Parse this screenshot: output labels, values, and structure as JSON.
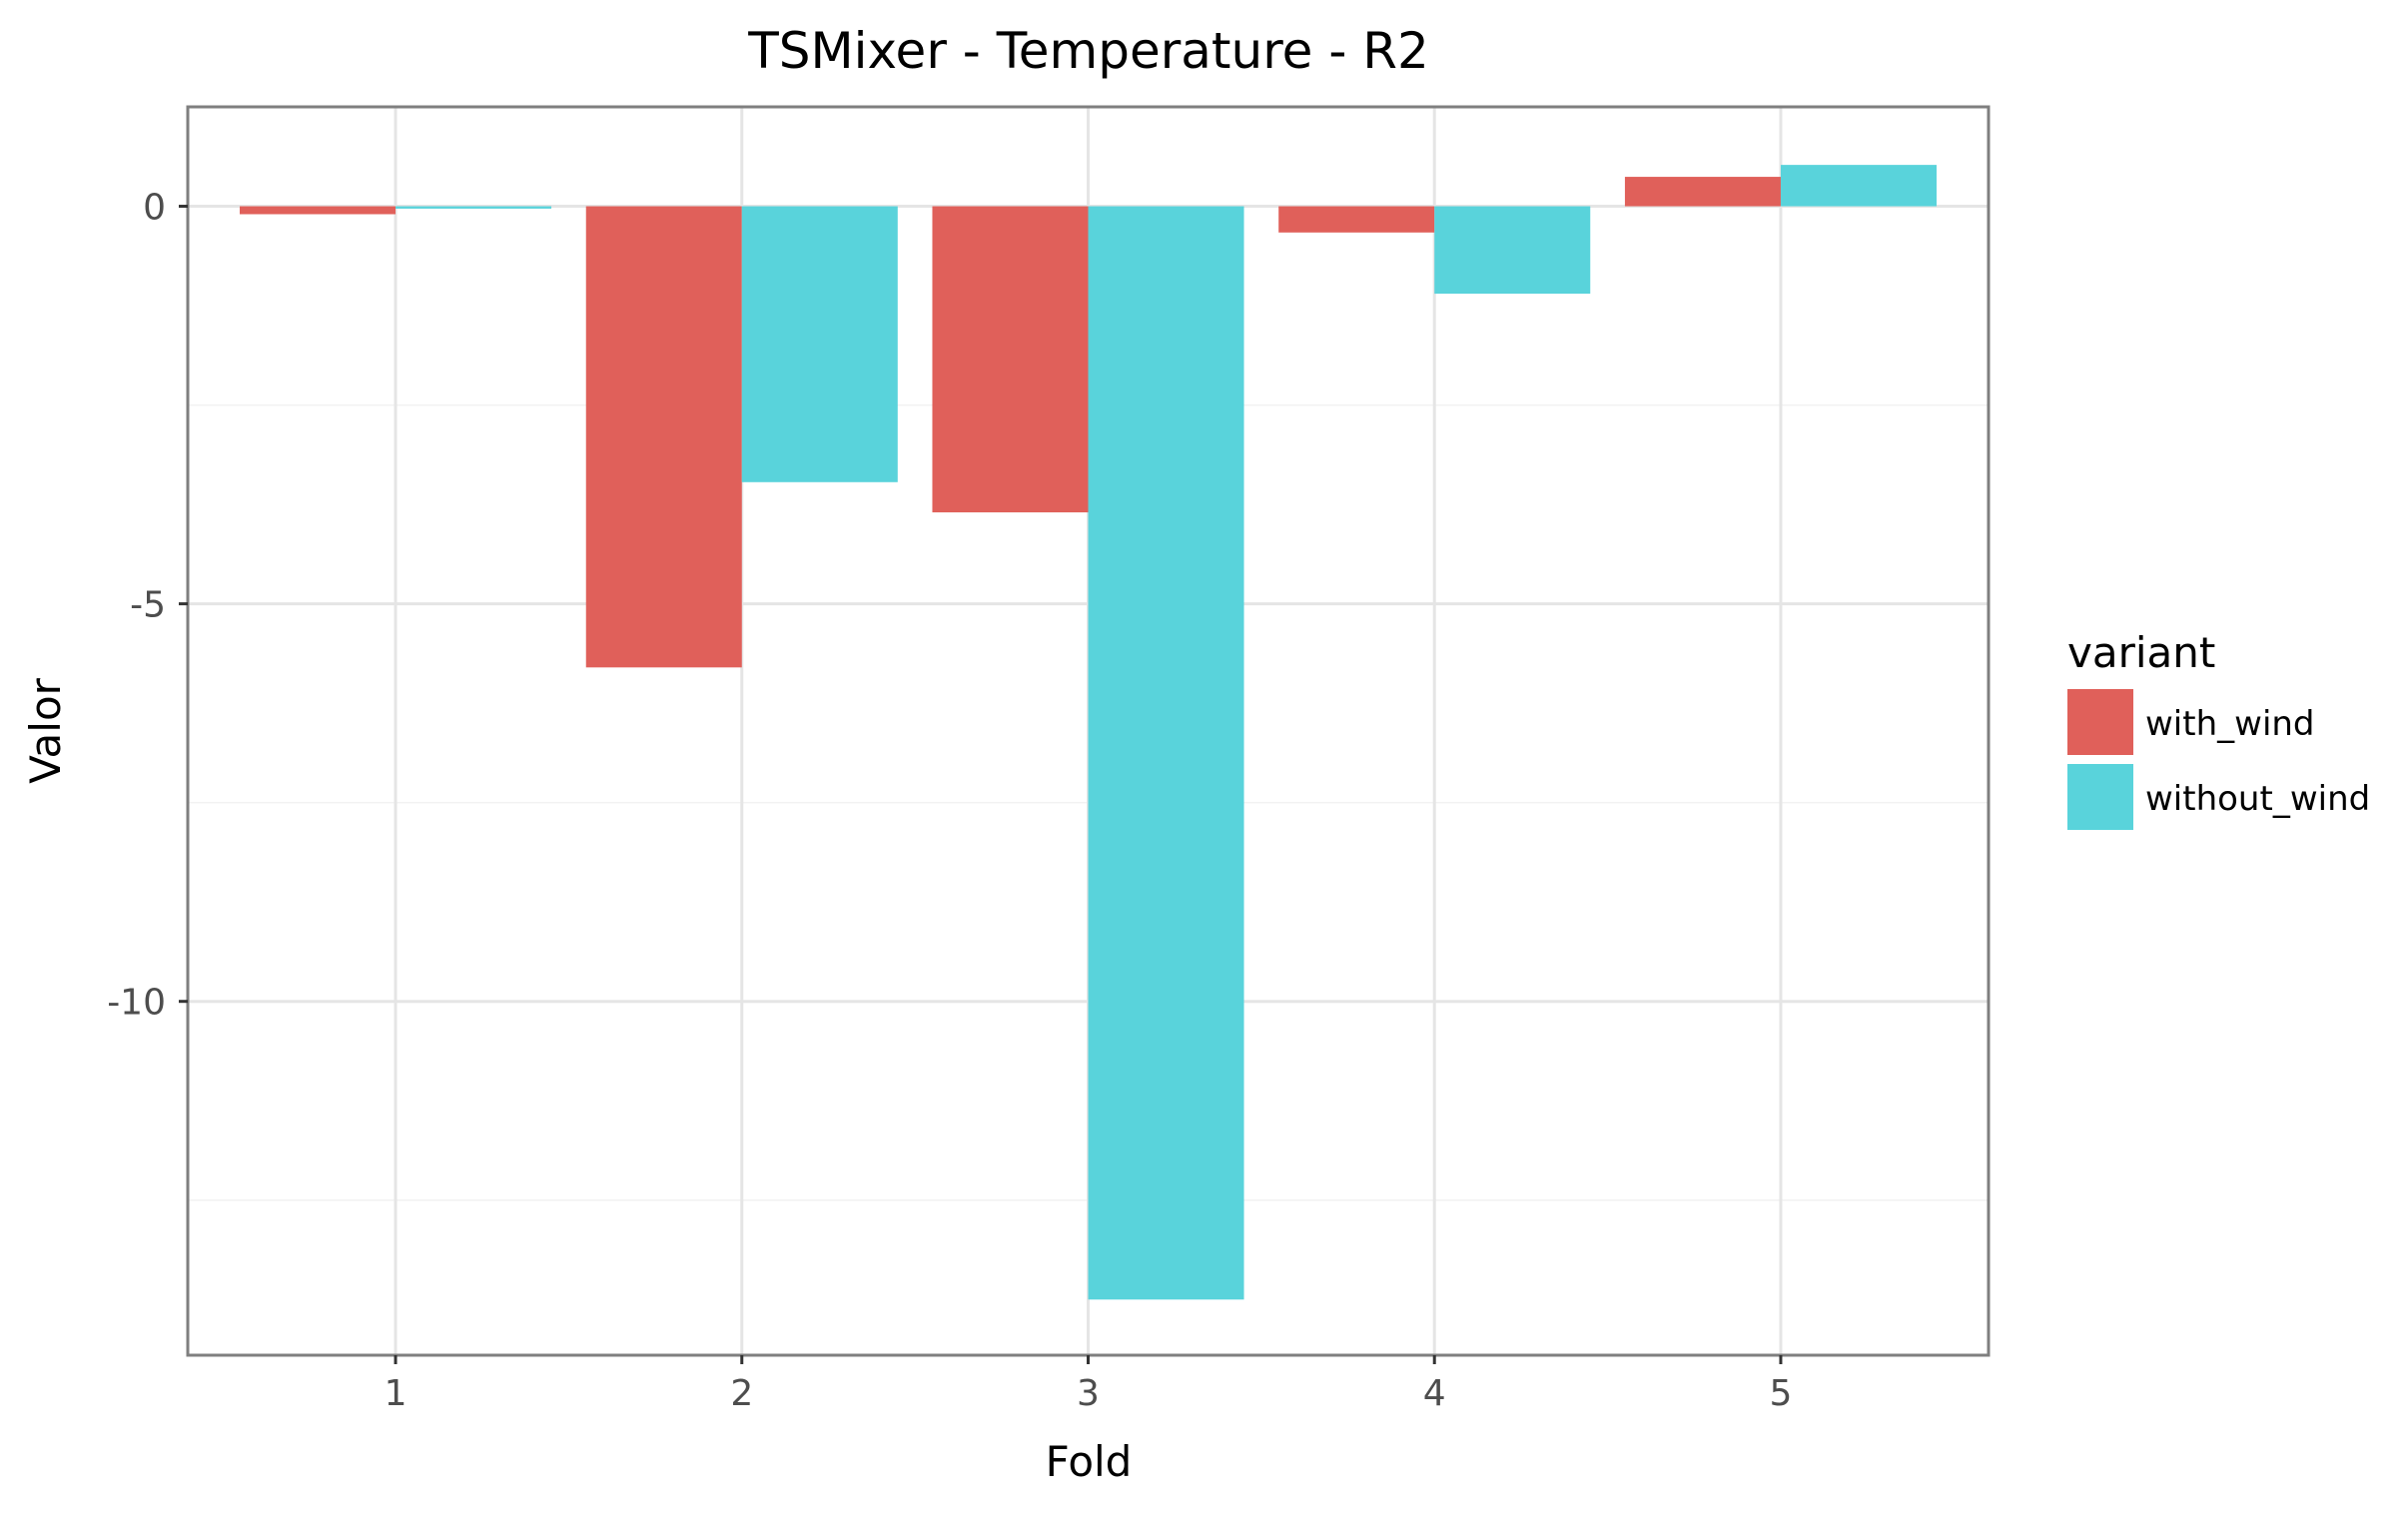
{
  "chart_data": {
    "type": "bar",
    "title": "TSMixer - Temperature - R2",
    "xlabel": "Fold",
    "ylabel": "Valor",
    "categories": [
      "1",
      "2",
      "3",
      "4",
      "5"
    ],
    "series": [
      {
        "name": "with_wind",
        "color": "#E0605A",
        "values": [
          -0.1,
          -5.8,
          -3.85,
          -0.33,
          0.37
        ]
      },
      {
        "name": "without_wind",
        "color": "#59D3DB",
        "values": [
          -0.03,
          -3.47,
          -13.75,
          -1.1,
          0.52
        ]
      }
    ],
    "yticks": [
      0,
      -5,
      -10
    ],
    "ytick_labels": [
      "0",
      "-5",
      "-10"
    ],
    "ylim": [
      -14.45,
      1.25
    ],
    "grid": true,
    "legend": {
      "title": "variant",
      "position": "right"
    }
  }
}
